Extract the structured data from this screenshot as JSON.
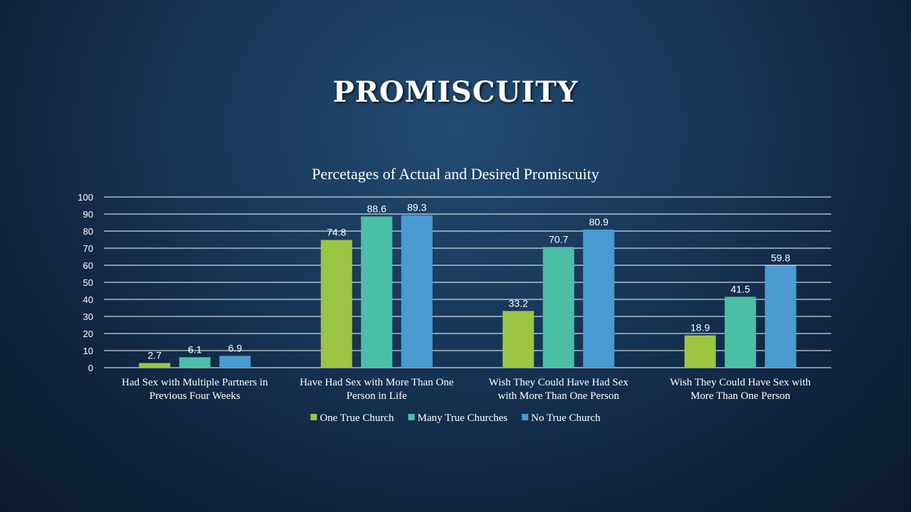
{
  "slide": {
    "title": "PROMISCUITY"
  },
  "chart_data": {
    "type": "bar",
    "title": "Percetages of Actual and Desired Promiscuity",
    "xlabel": "",
    "ylabel": "",
    "ylim": [
      0,
      100
    ],
    "yticks": [
      0,
      10,
      20,
      30,
      40,
      50,
      60,
      70,
      80,
      90,
      100
    ],
    "grid": true,
    "legend_position": "bottom",
    "categories": [
      [
        "Had Sex with Multiple Partners in",
        "Previous Four Weeks"
      ],
      [
        "Have Had Sex with More Than One",
        "Person in Life"
      ],
      [
        "Wish They Could Have Had Sex",
        "with More Than One Person"
      ],
      [
        "Wish They Could Have Sex with",
        "More Than One Person"
      ]
    ],
    "series": [
      {
        "name": "One True Church",
        "color": "#9dc544",
        "values": [
          2.7,
          74.8,
          33.2,
          18.9
        ]
      },
      {
        "name": "Many True Churches",
        "color": "#4bbfa6",
        "values": [
          6.1,
          88.6,
          70.7,
          41.5
        ]
      },
      {
        "name": "No True Church",
        "color": "#4a9bd2",
        "values": [
          6.9,
          89.3,
          80.9,
          59.8
        ]
      }
    ]
  }
}
